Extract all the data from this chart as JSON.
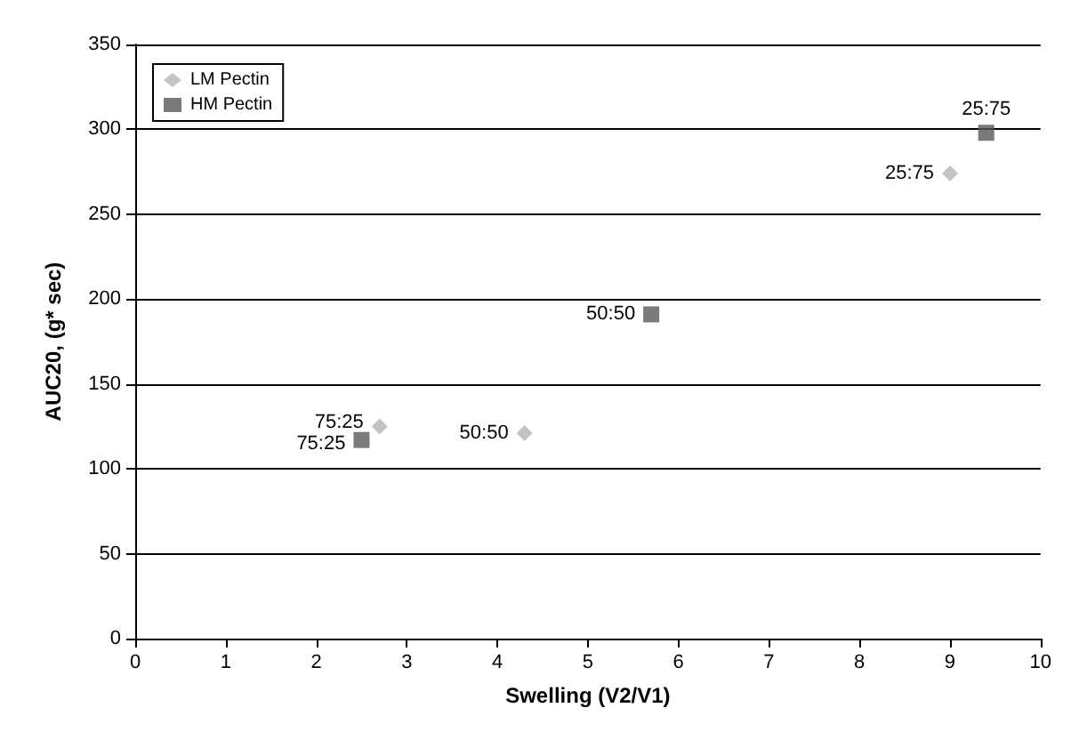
{
  "chart_data": {
    "type": "scatter",
    "xlabel": "Swelling (V2/V1)",
    "ylabel": "AUC20, (g* sec)",
    "xlim": [
      0,
      10
    ],
    "xticks": [
      0,
      1,
      2,
      3,
      4,
      5,
      6,
      7,
      8,
      9,
      10
    ],
    "ylim": [
      0,
      350
    ],
    "yticks": [
      0,
      50,
      100,
      150,
      200,
      250,
      300,
      350
    ],
    "grid": "y",
    "legend": "top left",
    "series": [
      {
        "name": "LM Pectin",
        "color": "#b4b4b4",
        "marker": "diamond",
        "x": [
          2.7,
          4.3,
          9.0
        ],
        "values": [
          125,
          121,
          274
        ]
      },
      {
        "name": "HM Pectin",
        "color": "#595959",
        "marker": "square",
        "x": [
          2.5,
          5.7,
          9.4
        ],
        "values": [
          117,
          191,
          298
        ]
      }
    ],
    "annotations": [
      {
        "text": "75:25",
        "x": 2.7,
        "y": 125
      },
      {
        "text": "50:50",
        "x": 4.3,
        "y": 121
      },
      {
        "text": "25:75",
        "x": 9.0,
        "y": 274
      },
      {
        "text": "75:25",
        "x": 2.5,
        "y": 117
      },
      {
        "text": "50:50",
        "x": 5.7,
        "y": 191
      },
      {
        "text": "25:75",
        "x": 9.4,
        "y": 298
      }
    ]
  }
}
